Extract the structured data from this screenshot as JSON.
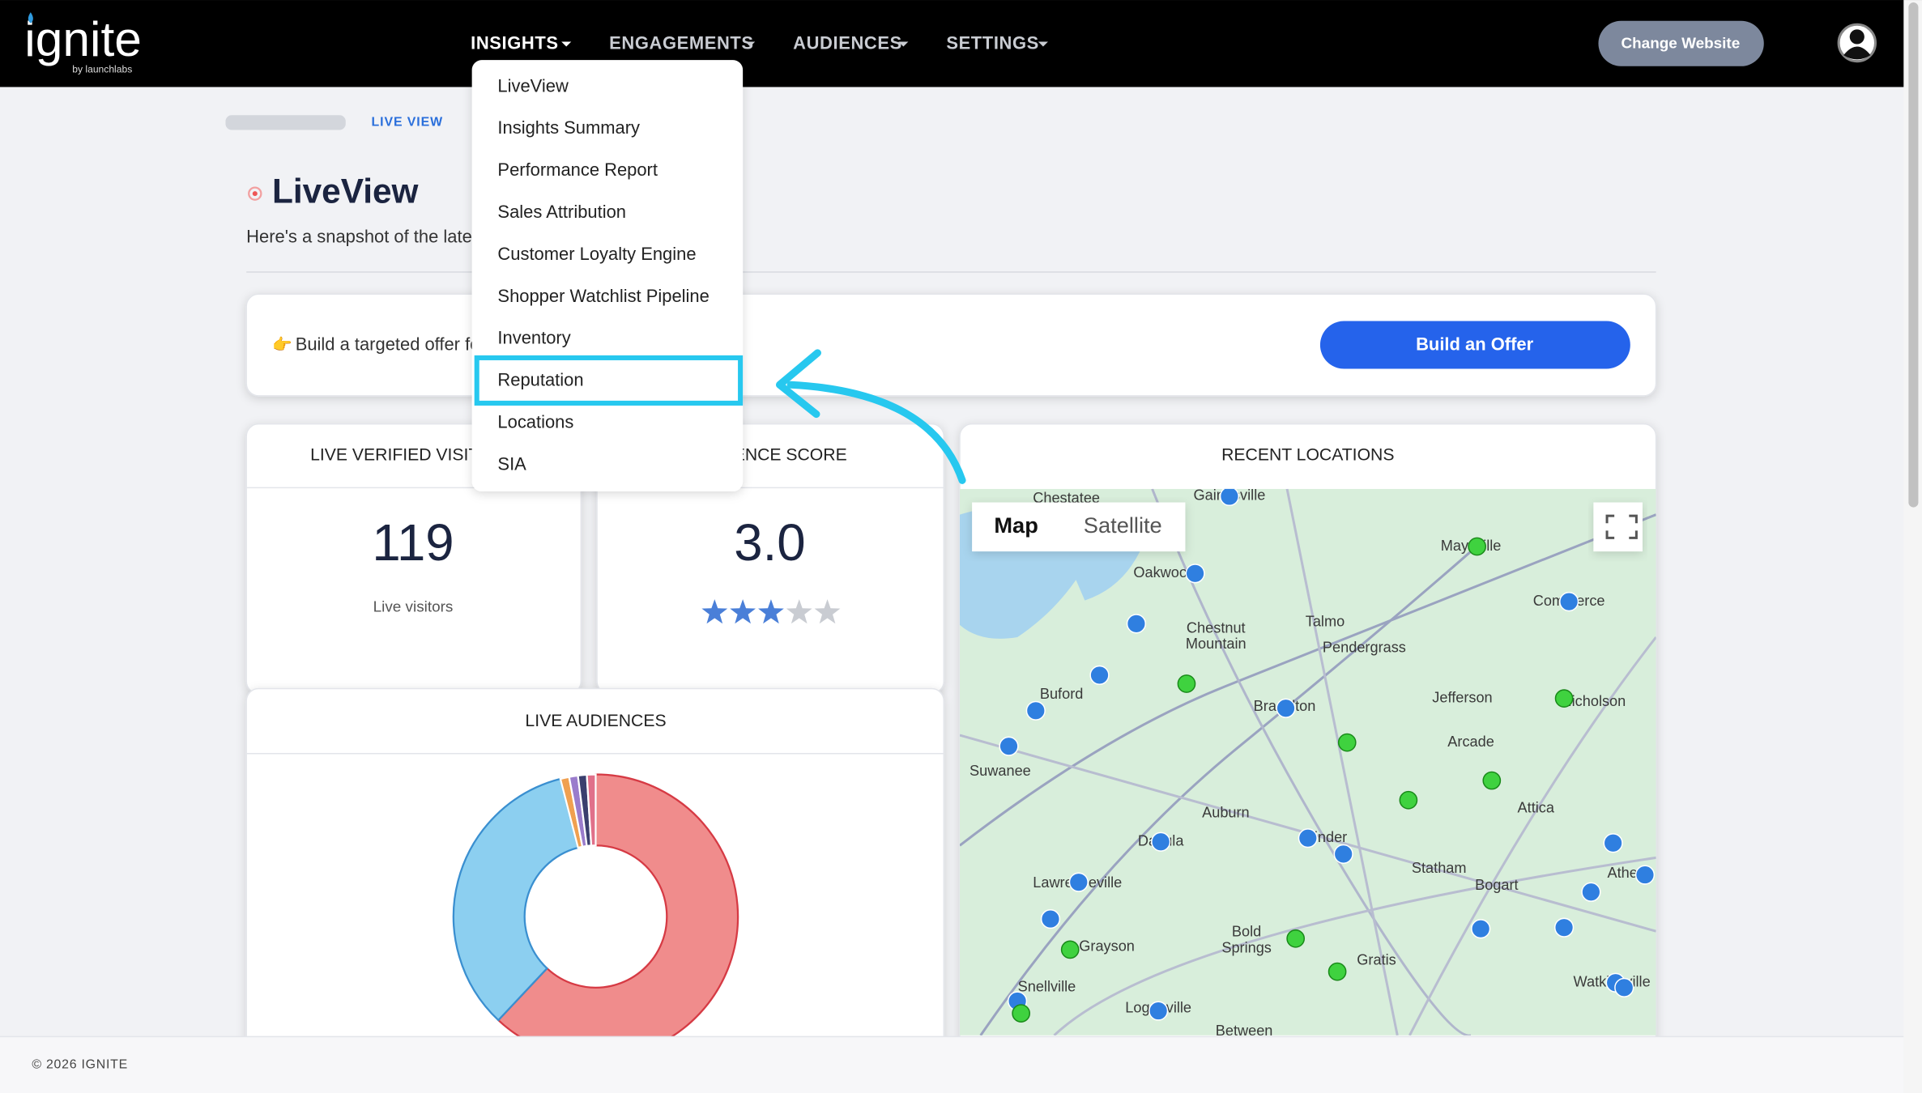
{
  "header": {
    "logo": "ignite",
    "logo_sub": "by launchlabs",
    "nav": [
      "INSIGHTS",
      "ENGAGEMENTS",
      "AUDIENCES",
      "SETTINGS"
    ],
    "change_website": "Change Website"
  },
  "dropdown": {
    "items": [
      "LiveView",
      "Insights Summary",
      "Performance Report",
      "Sales Attribution",
      "Customer Loyalty Engine",
      "Shopper Watchlist Pipeline",
      "Inventory",
      "Reputation",
      "Locations",
      "SIA"
    ]
  },
  "breadcrumb": "LIVE VIEW",
  "page": {
    "title": "LiveView",
    "subtitle": "Here's a snapshot of the latest activity on your website."
  },
  "offer": {
    "text": "Build a targeted offer for your live audience",
    "button": "Build an Offer"
  },
  "visitors": {
    "title": "LIVE VERIFIED VISITORS",
    "count": 119,
    "label": "Live visitors"
  },
  "score": {
    "title": "AUDIENCE SCORE",
    "value": "3.0"
  },
  "recent_locations": {
    "title": "RECENT LOCATIONS",
    "map_tabs": [
      "Map",
      "Satellite"
    ],
    "places": [
      "Chestatee",
      "Gainesville",
      "Oakwood",
      "Chestnut Mountain",
      "Talmo",
      "Pendergrass",
      "Buford",
      "Braselton",
      "Jefferson",
      "Maysville",
      "Commerce",
      "Nicholson",
      "Arcade",
      "Suwanee",
      "Auburn",
      "Winder",
      "Attica",
      "Dacula",
      "Lawrenceville",
      "Statham",
      "Bogart",
      "Athens",
      "Grayson",
      "Bold Springs",
      "Gratis",
      "Snellville",
      "Loganville",
      "Watkinsville",
      "Between"
    ]
  },
  "live_audiences": {
    "title": "LIVE AUDIENCES",
    "segments": [
      {
        "color": "#f08c8c",
        "value": 62
      },
      {
        "color": "#8ccff0",
        "value": 34
      },
      {
        "color": "#f0a050",
        "value": 1
      },
      {
        "color": "#9a7ccc",
        "value": 1
      },
      {
        "color": "#3a3f6e",
        "value": 1
      },
      {
        "color": "#e0708a",
        "value": 1
      }
    ]
  },
  "footer": "© 2026 IGNITE"
}
